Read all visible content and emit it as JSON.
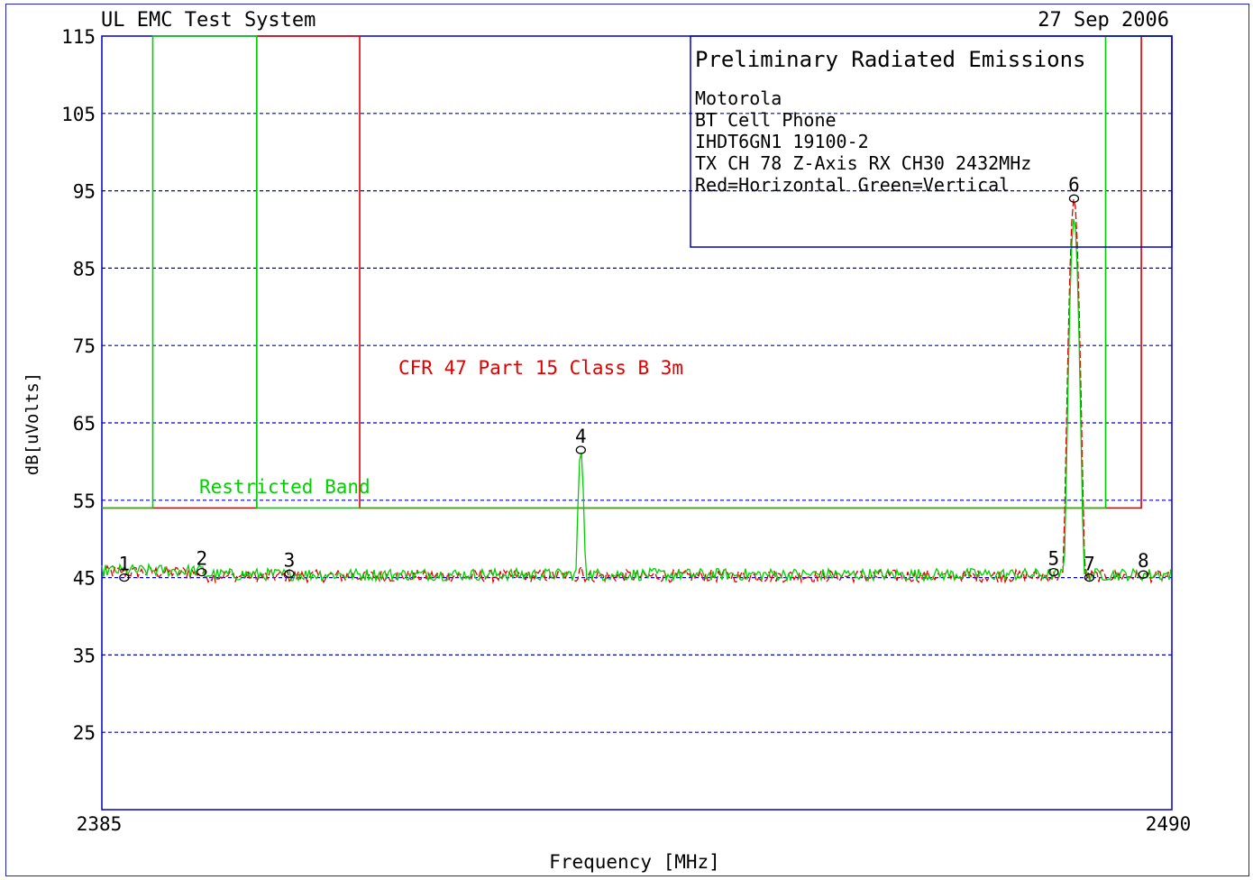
{
  "header": {
    "system_title": "UL EMC Test System",
    "date": "27 Sep 2006"
  },
  "info_box": {
    "title": "Preliminary Radiated Emissions",
    "lines": [
      "Motorola",
      "BT Cell Phone",
      "IHDT6GN1  19100-2",
      "TX CH 78 Z-Axis  RX CH30 2432MHz",
      "Red=Horizontal  Green=Vertical"
    ]
  },
  "colors": {
    "axis": "#0000c8",
    "grid": "#0000c8",
    "red": "#e00000",
    "green": "#00d000",
    "text": "#000000"
  },
  "chart_data": {
    "type": "line",
    "title": "",
    "xlabel": "Frequency [MHz]",
    "ylabel": "dB[uVolts]",
    "xlim": [
      2385,
      2490
    ],
    "ylim": [
      15,
      115
    ],
    "x_tick_labels": [
      "2385",
      "2490"
    ],
    "y_ticks": [
      115,
      105,
      95,
      85,
      75,
      65,
      55,
      45,
      35,
      25
    ],
    "grid": "horizontal dashed",
    "annotations": [
      {
        "text": "CFR 47 Part 15  Class B 3m",
        "color": "red"
      },
      {
        "text": "Restricted Band",
        "color": "green"
      }
    ],
    "limit_lines": [
      {
        "name": "CFR 47 Part 15 Class B 3m",
        "color": "red",
        "x": [
          2385,
          2400.2,
          2400.2,
          2410.3,
          2410.3,
          2487.0,
          2487.0,
          2490
        ],
        "y": [
          54,
          54,
          115,
          115,
          54,
          54,
          115,
          115
        ]
      },
      {
        "name": "Restricted Band",
        "color": "green",
        "x": [
          2385,
          2390.0,
          2390.0,
          2400.2,
          2400.2,
          2483.5,
          2483.5,
          2490
        ],
        "y": [
          54,
          54,
          115,
          115,
          54,
          54,
          115,
          115
        ]
      }
    ],
    "series": [
      {
        "name": "Horizontal",
        "color": "red",
        "baseline": 45.2,
        "peaks": [
          {
            "x": 2480.4,
            "y": 94,
            "width": 2.2
          },
          {
            "x": 2432.0,
            "y": 46.5,
            "width": 0.5
          }
        ]
      },
      {
        "name": "Vertical",
        "color": "green",
        "baseline": 45.4,
        "peaks": [
          {
            "x": 2480.4,
            "y": 91.5,
            "width": 2.0
          },
          {
            "x": 2432.0,
            "y": 61.5,
            "width": 1.0
          }
        ]
      }
    ],
    "markers": [
      {
        "label": "1",
        "x": 2387.2,
        "y": 45.0
      },
      {
        "label": "2",
        "x": 2394.8,
        "y": 45.7
      },
      {
        "label": "3",
        "x": 2403.4,
        "y": 45.5
      },
      {
        "label": "4",
        "x": 2432.0,
        "y": 61.5
      },
      {
        "label": "5",
        "x": 2478.4,
        "y": 45.7
      },
      {
        "label": "6",
        "x": 2480.4,
        "y": 94.0
      },
      {
        "label": "7",
        "x": 2481.9,
        "y": 45.0
      },
      {
        "label": "8",
        "x": 2487.2,
        "y": 45.4
      }
    ]
  }
}
